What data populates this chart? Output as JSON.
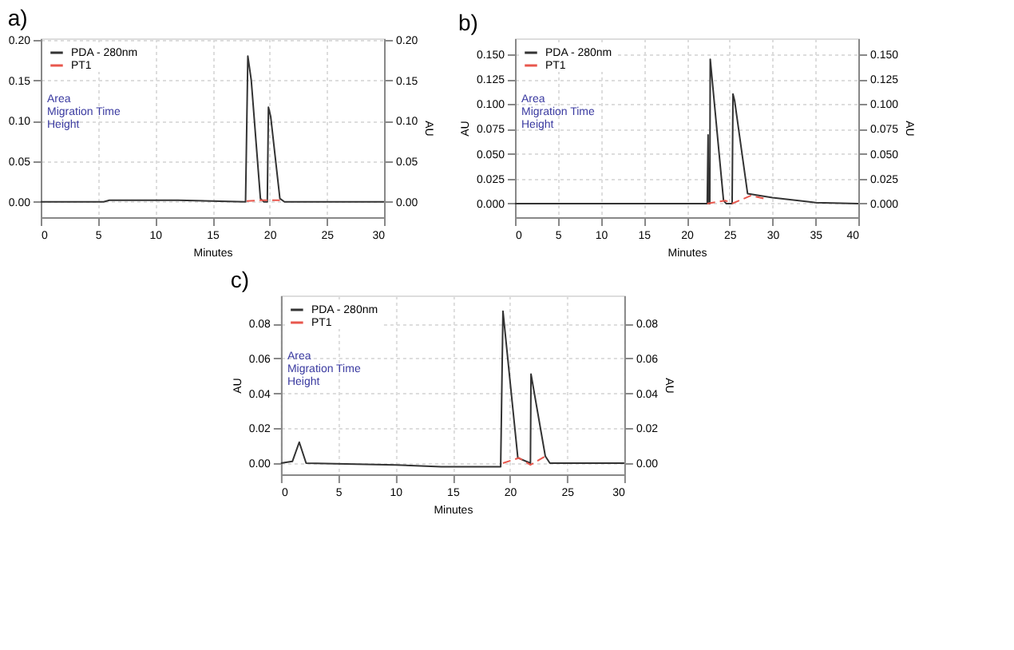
{
  "chart_data": [
    {
      "type": "line",
      "title": "a)",
      "xlabel": "Minutes",
      "y2label": "AU",
      "legend": "top left",
      "grid": true,
      "annotations": [
        "Area",
        "Migration Time",
        "Height"
      ],
      "xlim": [
        0,
        30
      ],
      "xticks": [
        0,
        5,
        10,
        15,
        20,
        25,
        30
      ],
      "ylim": [
        -0.019,
        0.202
      ],
      "yticks": [
        {
          "value": 0,
          "label": "0.00"
        },
        {
          "value": 0.05,
          "label": "0.05"
        },
        {
          "value": 0.1,
          "label": "0.10"
        },
        {
          "value": 0.15,
          "label": "0.15"
        },
        {
          "value": 0.2,
          "label": "0.20"
        }
      ],
      "y2lim": [
        -0.019,
        0.202
      ],
      "y2ticks": [
        {
          "value": 0,
          "label": "0.00"
        },
        {
          "value": 0.05,
          "label": "0.05"
        },
        {
          "value": 0.1,
          "label": "0.10"
        },
        {
          "value": 0.15,
          "label": "0.15"
        },
        {
          "value": 0.2,
          "label": "0.20"
        }
      ],
      "series": [
        {
          "name": "PDA - 280nm",
          "color": "#333333",
          "line_style": "solid",
          "x": [
            0,
            5.5,
            6,
            12,
            17.9,
            18.1,
            18.4,
            19.2,
            19.5,
            19.8,
            19.9,
            20.1,
            20.9,
            21.3,
            30
          ],
          "values": [
            0,
            0,
            0.002,
            0.002,
            0,
            0.18,
            0.15,
            0.004,
            0,
            0,
            0.117,
            0.105,
            0.004,
            0,
            0
          ]
        },
        {
          "name": "PT1",
          "color": "#e8574d",
          "line_style": "dashed",
          "x": [
            18.0,
            19.3,
            20.9
          ],
          "values": [
            0.001,
            0.002,
            0.002
          ]
        }
      ]
    },
    {
      "type": "line",
      "title": "b)",
      "xlabel": "Minutes",
      "ylabel": "AU",
      "y2label": "AU",
      "legend": "top left",
      "grid": true,
      "annotations": [
        "Area",
        "Migration Time",
        "Height"
      ],
      "xlim": [
        0,
        40
      ],
      "xticks": [
        0,
        5,
        10,
        15,
        20,
        25,
        30,
        35,
        40
      ],
      "ylim": [
        -0.0137,
        0.166
      ],
      "yticks": [
        {
          "value": 0,
          "label": "0.000"
        },
        {
          "value": 0.025,
          "label": "0.025"
        },
        {
          "value": 0.05,
          "label": "0.050"
        },
        {
          "value": 0.075,
          "label": "0.075"
        },
        {
          "value": 0.1,
          "label": "0.100"
        },
        {
          "value": 0.125,
          "label": "0.125"
        },
        {
          "value": 0.15,
          "label": "0.150"
        }
      ],
      "y2lim": [
        -0.0137,
        0.166
      ],
      "y2ticks": [
        {
          "value": 0,
          "label": "0.000"
        },
        {
          "value": 0.025,
          "label": "0.025"
        },
        {
          "value": 0.05,
          "label": "0.050"
        },
        {
          "value": 0.075,
          "label": "0.075"
        },
        {
          "value": 0.1,
          "label": "0.100"
        },
        {
          "value": 0.125,
          "label": "0.125"
        },
        {
          "value": 0.15,
          "label": "0.150"
        }
      ],
      "series": [
        {
          "name": "PDA - 280nm",
          "color": "#333333",
          "line_style": "solid",
          "x": [
            0,
            22.4,
            22.5,
            22.55,
            22.7,
            22.75,
            24.3,
            24.6,
            25.3,
            25.4,
            25.6,
            27.1,
            30,
            35,
            40
          ],
          "values": [
            0,
            0,
            0.069,
            0,
            0,
            0.145,
            0.003,
            0,
            0,
            0.11,
            0.103,
            0.01,
            0.006,
            0.001,
            0
          ]
        },
        {
          "name": "PT1",
          "color": "#e8574d",
          "line_style": "dashed",
          "x": [
            22.4,
            24.5,
            25.3,
            27.5,
            29
          ],
          "values": [
            0,
            0.003,
            0,
            0.008,
            0.005
          ]
        }
      ]
    },
    {
      "type": "line",
      "title": "c)",
      "xlabel": "Minutes",
      "ylabel": "AU",
      "y2label": "AU",
      "legend": "top left",
      "grid": true,
      "annotations": [
        "Area",
        "Migration Time",
        "Height"
      ],
      "xlim": [
        0,
        30
      ],
      "xticks": [
        0,
        5,
        10,
        15,
        20,
        25,
        30
      ],
      "ylim": [
        -0.0064,
        0.096
      ],
      "yticks": [
        {
          "value": 0,
          "label": "0.00"
        },
        {
          "value": 0.02,
          "label": "0.02"
        },
        {
          "value": 0.04,
          "label": "0.04"
        },
        {
          "value": 0.06,
          "label": "0.06"
        },
        {
          "value": 0.08,
          "label": "0.08"
        }
      ],
      "y2lim": [
        -0.0064,
        0.096
      ],
      "y2ticks": [
        {
          "value": 0,
          "label": "0.00"
        },
        {
          "value": 0.02,
          "label": "0.02"
        },
        {
          "value": 0.04,
          "label": "0.04"
        },
        {
          "value": 0.06,
          "label": "0.06"
        },
        {
          "value": 0.08,
          "label": "0.08"
        }
      ],
      "series": [
        {
          "name": "PDA - 280nm",
          "color": "#333333",
          "line_style": "solid",
          "x": [
            0,
            1,
            1.6,
            2.2,
            10,
            14,
            19.2,
            19.4,
            20.7,
            21.8,
            21.85,
            23.1,
            23.5,
            30
          ],
          "values": [
            0,
            0.001,
            0.012,
            0,
            -0.001,
            -0.002,
            -0.002,
            0.087,
            0.003,
            0,
            0.051,
            0.004,
            0,
            0
          ]
        },
        {
          "name": "PT1",
          "color": "#e8574d",
          "line_style": "dashed",
          "x": [
            19.4,
            20.8,
            21.8,
            23.1
          ],
          "values": [
            0,
            0.003,
            -0.001,
            0.004
          ]
        }
      ]
    }
  ]
}
